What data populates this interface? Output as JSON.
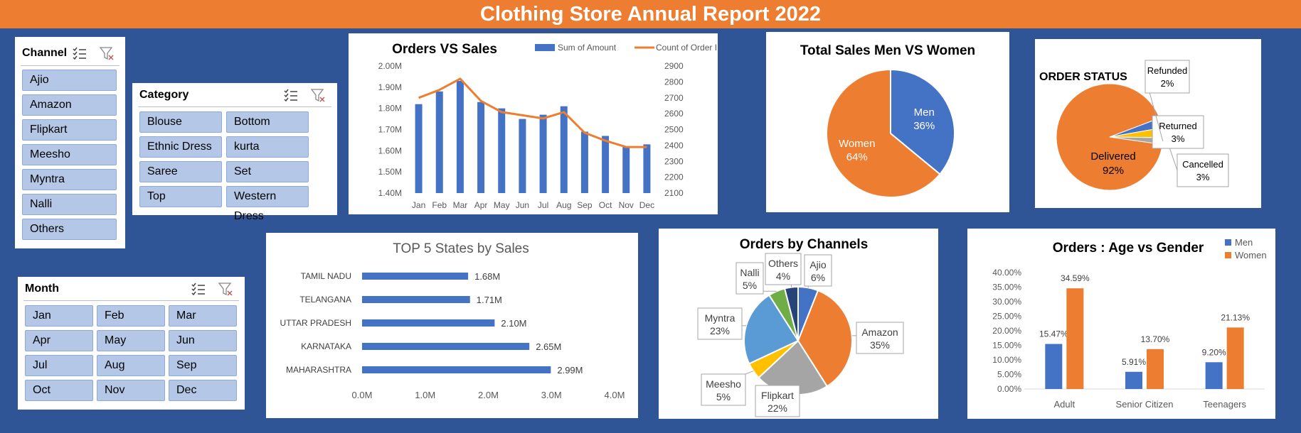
{
  "title": "Clothing Store Annual Report 2022",
  "slicers": {
    "channel": {
      "title": "Channel",
      "items": [
        "Ajio",
        "Amazon",
        "Flipkart",
        "Meesho",
        "Myntra",
        "Nalli",
        "Others"
      ]
    },
    "category": {
      "title": "Category",
      "items": [
        "Blouse",
        "Bottom",
        "Ethnic Dress",
        "kurta",
        "Saree",
        "Set",
        "Top",
        "Western Dress"
      ]
    },
    "month": {
      "title": "Month",
      "items": [
        "Jan",
        "Feb",
        "Mar",
        "Apr",
        "May",
        "Jun",
        "Jul",
        "Aug",
        "Sep",
        "Oct",
        "Nov",
        "Dec"
      ]
    }
  },
  "colors": {
    "blue": "#4472c4",
    "orange": "#ed7d31",
    "gray": "#a5a5a5",
    "yellow": "#ffc000",
    "lightblue": "#5b9bd5",
    "green": "#70ad47",
    "navy": "#264478",
    "background": "#2f5597"
  },
  "chart_data": [
    {
      "id": "orders_vs_sales",
      "type": "bar+line",
      "title": "Orders VS Sales",
      "categories": [
        "Jan",
        "Feb",
        "Mar",
        "Apr",
        "May",
        "Jun",
        "Jul",
        "Aug",
        "Sep",
        "Oct",
        "Nov",
        "Dec"
      ],
      "series": [
        {
          "name": "Sum of Amount",
          "type": "bar",
          "axis": "left",
          "values": [
            1.82,
            1.88,
            1.93,
            1.83,
            1.8,
            1.75,
            1.77,
            1.81,
            1.69,
            1.67,
            1.62,
            1.63
          ]
        },
        {
          "name": "Count of Order ID",
          "type": "line",
          "axis": "right",
          "values": [
            2700,
            2750,
            2820,
            2680,
            2610,
            2590,
            2570,
            2610,
            2480,
            2430,
            2390,
            2390
          ]
        }
      ],
      "ylim_left": [
        1.4,
        2.0
      ],
      "yticks_left": [
        "1.40M",
        "1.50M",
        "1.60M",
        "1.70M",
        "1.80M",
        "1.90M",
        "2.00M"
      ],
      "ylim_right": [
        2100,
        2900
      ],
      "yticks_right": [
        "2100",
        "2200",
        "2300",
        "2400",
        "2500",
        "2600",
        "2700",
        "2800",
        "2900"
      ],
      "legend": "top-right"
    },
    {
      "id": "sales_men_women",
      "type": "pie",
      "title": "Total Sales Men VS Women",
      "slices": [
        {
          "label": "Men",
          "value": 36,
          "text": "36%"
        },
        {
          "label": "Women",
          "value": 64,
          "text": "64%"
        }
      ]
    },
    {
      "id": "order_status",
      "type": "pie",
      "title": "ORDER STATUS",
      "slices": [
        {
          "label": "Delivered",
          "value": 92,
          "text": "92%"
        },
        {
          "label": "Cancelled",
          "value": 3,
          "text": "3%"
        },
        {
          "label": "Returned",
          "value": 3,
          "text": "3%"
        },
        {
          "label": "Refunded",
          "value": 2,
          "text": "2%"
        }
      ]
    },
    {
      "id": "top5_states",
      "type": "bar",
      "orientation": "horizontal",
      "title": "TOP 5 States by Sales",
      "categories": [
        "TAMIL NADU",
        "TELANGANA",
        "UTTAR PRADESH",
        "KARNATAKA",
        "MAHARASHTRA"
      ],
      "values": [
        1.68,
        1.71,
        2.1,
        2.65,
        2.99
      ],
      "value_labels": [
        "1.68M",
        "1.71M",
        "2.10M",
        "2.65M",
        "2.99M"
      ],
      "xlim": [
        0,
        4
      ],
      "xticks": [
        "0.0M",
        "1.0M",
        "2.0M",
        "3.0M",
        "4.0M"
      ]
    },
    {
      "id": "orders_by_channels",
      "type": "pie",
      "title": "Orders by Channels",
      "slices": [
        {
          "label": "Ajio",
          "value": 6,
          "text": "6%"
        },
        {
          "label": "Amazon",
          "value": 35,
          "text": "35%"
        },
        {
          "label": "Flipkart",
          "value": 22,
          "text": "22%"
        },
        {
          "label": "Meesho",
          "value": 5,
          "text": "5%"
        },
        {
          "label": "Myntra",
          "value": 23,
          "text": "23%"
        },
        {
          "label": "Nalli",
          "value": 5,
          "text": "5%"
        },
        {
          "label": "Others",
          "value": 4,
          "text": "4%"
        }
      ]
    },
    {
      "id": "age_vs_gender",
      "type": "bar",
      "title": "Orders : Age vs Gender",
      "categories": [
        "Adult",
        "Senior Citizen",
        "Teenagers"
      ],
      "series": [
        {
          "name": "Men",
          "values": [
            15.47,
            5.91,
            9.2
          ],
          "labels": [
            "15.47%",
            "5.91%",
            "9.20%"
          ]
        },
        {
          "name": "Women",
          "values": [
            34.59,
            13.7,
            21.13
          ],
          "labels": [
            "34.59%",
            "13.70%",
            "21.13%"
          ]
        }
      ],
      "ylim": [
        0,
        40
      ],
      "yticks": [
        "0.00%",
        "5.00%",
        "10.00%",
        "15.00%",
        "20.00%",
        "25.00%",
        "30.00%",
        "35.00%",
        "40.00%"
      ],
      "legend": "top-right"
    }
  ]
}
